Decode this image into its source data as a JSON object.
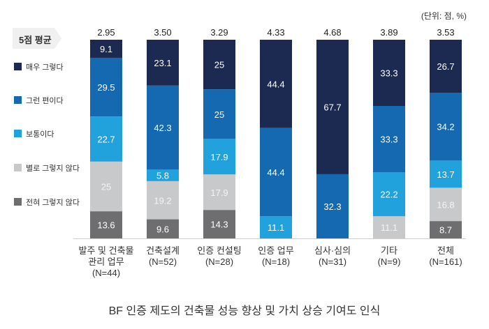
{
  "chart_data": {
    "type": "bar",
    "stacked": true,
    "orientation": "vertical-100-percent",
    "title": "BF 인증 제도의 건축물 성능 향상 및 가치 상승 기여도 인식",
    "unit_note": "(단위: 점, %)",
    "avg_label": "5점 평균",
    "categories": [
      [
        "발주 및 건축물",
        "관리 업무",
        "(N=44)"
      ],
      [
        "건축설계",
        "(N=52)"
      ],
      [
        "인증 컨설팅",
        "(N=28)"
      ],
      [
        "인증 업무",
        "(N=18)"
      ],
      [
        "심사·심의",
        "(N=31)"
      ],
      [
        "기타",
        "(N=9)"
      ],
      [
        "전체",
        "(N=161)"
      ]
    ],
    "averages": [
      "2.95",
      "3.50",
      "3.29",
      "4.33",
      "4.68",
      "3.89",
      "3.53"
    ],
    "series": [
      {
        "name": "매우 그렇다",
        "color": "#1c2a52",
        "label_color": "#ffffff",
        "values": [
          9.1,
          23.1,
          25,
          44.4,
          67.7,
          33.3,
          26.7
        ]
      },
      {
        "name": "그런 편이다",
        "color": "#1469b0",
        "label_color": "#ffffff",
        "values": [
          29.5,
          42.3,
          25,
          44.4,
          32.3,
          33.3,
          34.2
        ]
      },
      {
        "name": "보통이다",
        "color": "#22a2dd",
        "label_color": "#ffffff",
        "values": [
          22.7,
          5.8,
          17.9,
          11.1,
          0,
          22.2,
          13.7
        ]
      },
      {
        "name": "별로 그렇지 않다",
        "color": "#c8c9cb",
        "label_color": "#f4f4f4",
        "values": [
          25,
          19.2,
          17.9,
          0,
          0,
          11.1,
          16.8
        ]
      },
      {
        "name": "전혀 그렇지 않다",
        "color": "#6e6e70",
        "label_color": "#ffffff",
        "values": [
          13.6,
          9.6,
          14.3,
          0,
          0,
          0,
          8.7
        ]
      }
    ],
    "ylim": [
      0,
      100
    ],
    "grid": false,
    "legend_position": "left"
  }
}
